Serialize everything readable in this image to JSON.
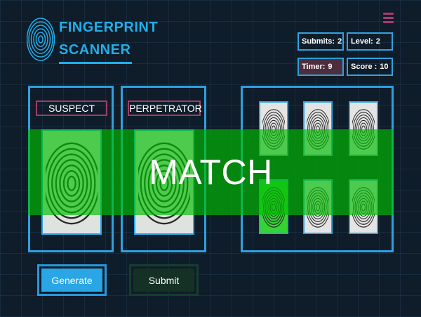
{
  "app": {
    "title_line1": "FINGERPRINT",
    "title_line2": "SCANNER"
  },
  "stats": {
    "submits_label": "Submits:",
    "submits_value": "2",
    "level_label": "Level:",
    "level_value": "2",
    "timer_label": "Timer:",
    "timer_value": "9",
    "score_label": "Score :",
    "score_value": "10"
  },
  "panels": {
    "suspect_label": "SUSPECT",
    "perpetrator_label": "PERPETRATOR"
  },
  "overlay": {
    "result_text": "MATCH"
  },
  "buttons": {
    "generate_label": "Generate",
    "submit_label": "Submit"
  },
  "icons": {
    "logo": "fingerprint-icon",
    "menu": "hamburger-menu-icon"
  },
  "colors": {
    "background": "#0f1c29",
    "accent_blue": "#22aee8",
    "label_border": "#a53a66",
    "timer_bg": "#4e2d3f",
    "match_overlay": "#00be00",
    "selected_thumb": "#35d335",
    "submit_bg": "#153125"
  }
}
